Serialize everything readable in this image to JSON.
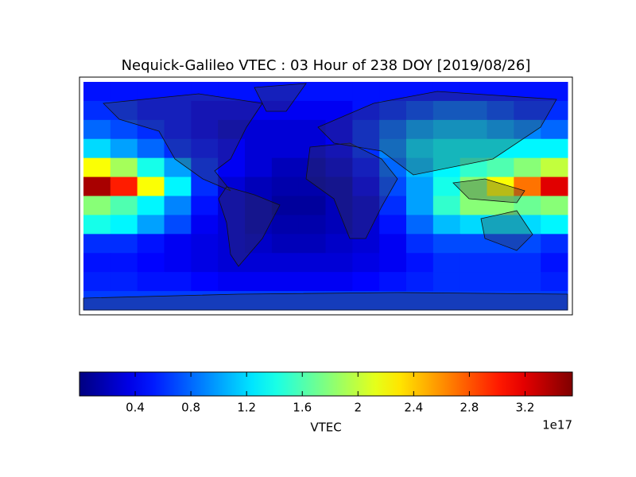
{
  "chart_data": {
    "type": "heatmap",
    "title": "Nequick-Galileo VTEC : 03 Hour of 238 DOY [2019/08/26]",
    "colorbar_label": "VTEC",
    "colorbar_offset": "1e17",
    "colormap": "jet",
    "clim": [
      0,
      3.54
    ],
    "cticks": [
      0.4,
      0.8,
      1.2,
      1.6,
      2.0,
      2.4,
      2.8,
      3.2
    ],
    "xlim": [
      -180,
      180
    ],
    "ylim": [
      -90,
      90
    ],
    "x": [
      -170,
      -150,
      -130,
      -110,
      -90,
      -70,
      -50,
      -30,
      -10,
      10,
      30,
      50,
      70,
      90,
      110,
      130,
      150,
      170
    ],
    "y": [
      82.5,
      67.5,
      52.5,
      37.5,
      22.5,
      7.5,
      -7.5,
      -22.5,
      -37.5,
      -52.5,
      -67.5,
      -82.5
    ],
    "z": [
      [
        0.5,
        0.5,
        0.5,
        0.5,
        0.5,
        0.5,
        0.5,
        0.5,
        0.5,
        0.5,
        0.5,
        0.5,
        0.5,
        0.5,
        0.5,
        0.5,
        0.5,
        0.5
      ],
      [
        0.6,
        0.6,
        0.5,
        0.5,
        0.4,
        0.4,
        0.4,
        0.4,
        0.4,
        0.4,
        0.5,
        0.6,
        0.7,
        0.8,
        0.8,
        0.7,
        0.6,
        0.6
      ],
      [
        0.8,
        0.7,
        0.6,
        0.5,
        0.4,
        0.3,
        0.3,
        0.3,
        0.3,
        0.4,
        0.6,
        0.8,
        1.0,
        1.1,
        1.1,
        1.0,
        0.9,
        0.8
      ],
      [
        1.2,
        1.0,
        0.8,
        0.6,
        0.5,
        0.4,
        0.3,
        0.3,
        0.3,
        0.4,
        0.6,
        0.9,
        1.2,
        1.3,
        1.3,
        1.3,
        1.3,
        1.3
      ],
      [
        2.2,
        1.9,
        1.4,
        1.0,
        0.6,
        0.4,
        0.3,
        0.2,
        0.2,
        0.3,
        0.5,
        0.8,
        1.1,
        1.3,
        1.5,
        1.6,
        1.8,
        2.0
      ],
      [
        3.4,
        3.0,
        2.2,
        1.3,
        0.6,
        0.3,
        0.2,
        0.15,
        0.15,
        0.2,
        0.4,
        0.7,
        1.0,
        1.4,
        1.8,
        2.2,
        2.7,
        3.2
      ],
      [
        1.8,
        1.6,
        1.3,
        0.9,
        0.5,
        0.3,
        0.2,
        0.1,
        0.1,
        0.2,
        0.3,
        0.6,
        1.0,
        1.5,
        1.8,
        1.8,
        1.7,
        1.8
      ],
      [
        1.4,
        1.3,
        1.0,
        0.7,
        0.4,
        0.3,
        0.2,
        0.15,
        0.15,
        0.2,
        0.3,
        0.5,
        0.8,
        1.1,
        1.2,
        1.2,
        1.2,
        1.3
      ],
      [
        0.6,
        0.6,
        0.5,
        0.4,
        0.35,
        0.3,
        0.25,
        0.2,
        0.2,
        0.25,
        0.3,
        0.4,
        0.6,
        0.7,
        0.7,
        0.7,
        0.7,
        0.6
      ],
      [
        0.5,
        0.5,
        0.45,
        0.4,
        0.35,
        0.3,
        0.3,
        0.3,
        0.3,
        0.3,
        0.35,
        0.4,
        0.5,
        0.6,
        0.6,
        0.6,
        0.6,
        0.5
      ],
      [
        0.55,
        0.55,
        0.5,
        0.5,
        0.45,
        0.4,
        0.4,
        0.4,
        0.4,
        0.4,
        0.45,
        0.5,
        0.55,
        0.6,
        0.6,
        0.6,
        0.6,
        0.55
      ],
      [
        0.65,
        0.65,
        0.65,
        0.65,
        0.65,
        0.65,
        0.65,
        0.65,
        0.65,
        0.65,
        0.65,
        0.65,
        0.65,
        0.65,
        0.65,
        0.65,
        0.65,
        0.65
      ]
    ]
  }
}
